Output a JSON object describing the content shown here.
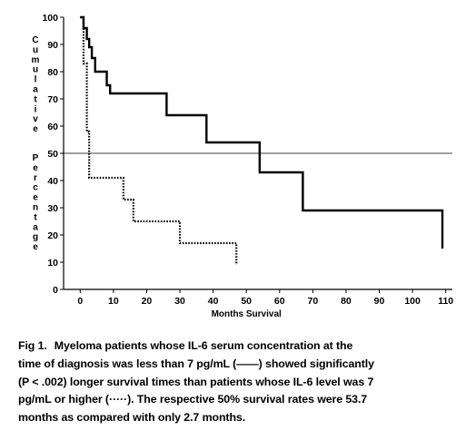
{
  "chart_data": {
    "type": "line",
    "subtype": "step (Kaplan-Meier survival)",
    "xlabel": "Months Survival",
    "ylabel": "Cumulative Percentage",
    "xlim": [
      -5,
      112
    ],
    "ylim": [
      0,
      100
    ],
    "xticks": [
      0,
      10,
      20,
      30,
      40,
      50,
      60,
      70,
      80,
      90,
      100,
      110
    ],
    "yticks": [
      0,
      10,
      20,
      30,
      40,
      50,
      60,
      70,
      80,
      90,
      100
    ],
    "reference_line_y": 50,
    "grid": false,
    "series": [
      {
        "style": "solid",
        "color": "#000000",
        "x": [
          0,
          1,
          2,
          2.7,
          3.5,
          4.5,
          8,
          9,
          26,
          38,
          54,
          67,
          109
        ],
        "y": [
          100,
          96,
          92,
          89,
          85,
          80,
          75,
          72,
          64,
          54,
          43,
          29,
          15
        ]
      },
      {
        "style": "dotted",
        "color": "#000000",
        "x": [
          0,
          1,
          2,
          2.7,
          13,
          16,
          30,
          47
        ],
        "y": [
          100,
          83,
          58,
          41,
          33,
          25,
          17,
          9
        ]
      }
    ]
  },
  "caption": {
    "label": "Fig 1.",
    "lines": [
      "Myeloma patients whose IL-6 serum concentration at the",
      "time of diagnosis was less than 7 pg/mL (——) showed significantly",
      "(P < .002) longer survival times than patients whose IL-6 level was 7",
      "pg/mL or higher (·····). The respective 50% survival rates were 53.7",
      "months as compared with only 2.7 months."
    ]
  }
}
